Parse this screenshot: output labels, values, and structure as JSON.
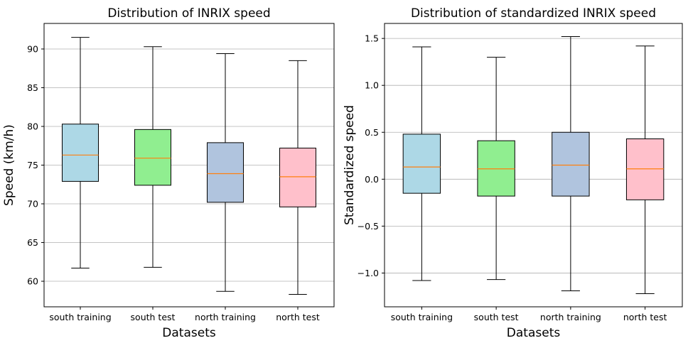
{
  "chart_data": [
    {
      "type": "box",
      "title": "Distribution of INRIX speed",
      "xlabel": "Datasets",
      "ylabel": "Speed (km/h)",
      "categories": [
        "south training",
        "south test",
        "north training",
        "north test"
      ],
      "ylim": [
        56.7,
        93.3
      ],
      "yticks": [
        60,
        65,
        70,
        75,
        80,
        85,
        90
      ],
      "ytick_labels": [
        "60",
        "65",
        "70",
        "75",
        "80",
        "85",
        "90"
      ],
      "grid": "horizontal",
      "boxes": [
        {
          "whisker_low": 61.7,
          "q1": 72.9,
          "median": 76.3,
          "q3": 80.3,
          "whisker_high": 91.5
        },
        {
          "whisker_low": 61.8,
          "q1": 72.4,
          "median": 75.9,
          "q3": 79.6,
          "whisker_high": 90.3
        },
        {
          "whisker_low": 58.7,
          "q1": 70.2,
          "median": 73.9,
          "q3": 77.9,
          "whisker_high": 89.4
        },
        {
          "whisker_low": 58.3,
          "q1": 69.6,
          "median": 73.5,
          "q3": 77.2,
          "whisker_high": 88.5
        }
      ]
    },
    {
      "type": "box",
      "title": "Distribution of standardized INRIX speed",
      "xlabel": "Datasets",
      "ylabel": "Standardized speed",
      "categories": [
        "south training",
        "south test",
        "north training",
        "north test"
      ],
      "ylim": [
        -1.36,
        1.66
      ],
      "yticks": [
        -1.0,
        -0.5,
        0.0,
        0.5,
        1.0,
        1.5
      ],
      "ytick_labels": [
        "−1.0",
        "−0.5",
        "0.0",
        "0.5",
        "1.0",
        "1.5"
      ],
      "grid": "horizontal",
      "boxes": [
        {
          "whisker_low": -1.08,
          "q1": -0.15,
          "median": 0.13,
          "q3": 0.48,
          "whisker_high": 1.41
        },
        {
          "whisker_low": -1.07,
          "q1": -0.18,
          "median": 0.11,
          "q3": 0.41,
          "whisker_high": 1.3
        },
        {
          "whisker_low": -1.19,
          "q1": -0.18,
          "median": 0.15,
          "q3": 0.5,
          "whisker_high": 1.52
        },
        {
          "whisker_low": -1.22,
          "q1": -0.22,
          "median": 0.11,
          "q3": 0.43,
          "whisker_high": 1.42
        }
      ]
    }
  ],
  "colors": {
    "box_fills": [
      "#add8e6",
      "#90ee90",
      "#b0c4de",
      "#ffc0cb"
    ],
    "median": "#ff7f0e",
    "grid": "#b0b0b0",
    "line": "#000000"
  }
}
